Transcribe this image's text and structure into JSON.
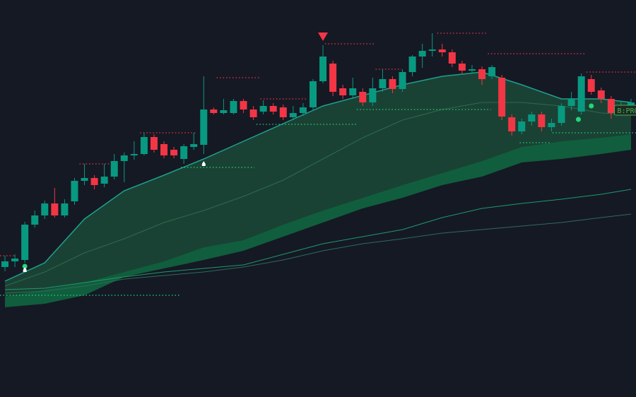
{
  "chart_data": {
    "type": "candlestick",
    "background": "#151924",
    "xlim": [
      -0.5,
      63.5
    ],
    "ylim": [
      0,
      562
    ],
    "up_color": "#089981",
    "down_color": "#f23645",
    "open": [
      184,
      192,
      194,
      244,
      257,
      274,
      257,
      277,
      306,
      310,
      302,
      312,
      334,
      342,
      344,
      368,
      358,
      350,
      337,
      354,
      357,
      407,
      402,
      402,
      419,
      407,
      404,
      412,
      410,
      396,
      402,
      410,
      447,
      472,
      437,
      427,
      432,
      417,
      437,
      450,
      436,
      460,
      482,
      490,
      492,
      488,
      472,
      462,
      464,
      454,
      452,
      396,
      376,
      390,
      400,
      382,
      388,
      412,
      404,
      450,
      434,
      422,
      404,
      412
    ],
    "close": [
      192,
      196,
      244,
      257,
      274,
      257,
      274,
      306,
      310,
      300,
      312,
      334,
      342,
      344,
      368,
      350,
      342,
      342,
      355,
      358,
      407,
      402,
      406,
      419,
      407,
      396,
      412,
      404,
      396,
      402,
      410,
      447,
      482,
      432,
      427,
      437,
      417,
      437,
      450,
      436,
      460,
      482,
      490,
      492,
      488,
      472,
      462,
      464,
      450,
      467,
      397,
      376,
      390,
      400,
      382,
      388,
      412,
      422,
      454,
      432,
      422,
      402,
      412,
      417
    ],
    "high": [
      200,
      202,
      248,
      264,
      278,
      296,
      280,
      310,
      330,
      314,
      330,
      344,
      346,
      362,
      374,
      372,
      362,
      354,
      358,
      374,
      454,
      410,
      422,
      422,
      422,
      412,
      420,
      416,
      414,
      412,
      416,
      450,
      498,
      476,
      442,
      452,
      437,
      452,
      464,
      454,
      464,
      484,
      500,
      515,
      500,
      492,
      476,
      470,
      468,
      470,
      456,
      400,
      394,
      404,
      404,
      394,
      416,
      432,
      458,
      456,
      438,
      426,
      418,
      422
    ],
    "low": [
      178,
      184,
      190,
      240,
      252,
      254,
      254,
      272,
      300,
      294,
      297,
      308,
      304,
      336,
      342,
      346,
      338,
      338,
      330,
      350,
      344,
      400,
      400,
      400,
      402,
      392,
      400,
      400,
      392,
      392,
      398,
      406,
      444,
      426,
      422,
      422,
      412,
      412,
      432,
      430,
      432,
      454,
      466,
      482,
      482,
      467,
      458,
      458,
      442,
      450,
      392,
      370,
      372,
      384,
      376,
      376,
      384,
      406,
      400,
      428,
      416,
      394,
      400,
      406
    ],
    "indicator_x": [
      0,
      4,
      8,
      12,
      16,
      20,
      24,
      28,
      32,
      36,
      40,
      44,
      48,
      52,
      56,
      60,
      63
    ],
    "bands": [
      {
        "upper": [
          164,
          190,
          252,
          292,
          314,
          337,
          362,
          387,
          412,
          427,
          442,
          454,
          460,
          442,
          422,
          422,
          417
        ],
        "lower": [
          142,
          152,
          162,
          177,
          192,
          212,
          222,
          244,
          264,
          282,
          300,
          317,
          334,
          354,
          362,
          367,
          372
        ],
        "color": "#1b4a37",
        "edge_color": "#1fa08c"
      },
      {
        "upper": [
          142,
          152,
          162,
          177,
          192,
          212,
          222,
          244,
          264,
          282,
          300,
          317,
          334,
          354,
          362,
          367,
          372
        ],
        "lower": [
          127,
          132,
          144,
          170,
          182,
          194,
          207,
          227,
          247,
          267,
          282,
          300,
          312,
          332,
          337,
          344,
          350
        ],
        "color": "#0f6b42"
      }
    ],
    "series": [
      {
        "color": "#2c6b4d",
        "values": [
          157,
          177,
          204,
          224,
          247,
          264,
          284,
          307,
          337,
          367,
          392,
          407,
          417,
          417,
          412,
          402,
          400
        ]
      },
      {
        "color": "#1e9a6c",
        "values": [
          152,
          154,
          162,
          170,
          177,
          182,
          187,
          202,
          217,
          227,
          237,
          254,
          267,
          274,
          280,
          287,
          294
        ]
      },
      {
        "color": "#2e6b5a",
        "values": [
          147,
          150,
          157,
          167,
          172,
          177,
          184,
          194,
          207,
          217,
          224,
          232,
          237,
          242,
          247,
          254,
          259
        ]
      }
    ],
    "levels": [
      {
        "color": "#f23645",
        "from": [
          -0.5,
          7.5,
          13.6,
          21.3,
          25.7,
          32.2,
          37.3,
          43.5,
          48.6,
          58.5
        ],
        "to": [
          1.1,
          10.5,
          19.3,
          25.7,
          30.4,
          37.2,
          39.9,
          48.4,
          58.4,
          63.5
        ],
        "values": [
          200,
          330,
          374,
          452,
          422,
          500,
          464,
          515,
          486,
          460
        ]
      },
      {
        "color": "#22d67a",
        "from": [
          -0.5,
          17.7,
          25.3,
          35.4,
          51.8,
          55.1
        ],
        "to": [
          17.7,
          25.1,
          35.4,
          48.9,
          55,
          63.5
        ],
        "values": [
          144,
          325,
          386,
          407,
          360,
          374
        ]
      }
    ],
    "markers": {
      "sell": {
        "color": "#f23645",
        "x": [
          32
        ],
        "values": [
          510
        ]
      },
      "buy": {
        "color": "#22d67a",
        "x": [
          2,
          57.7,
          59
        ],
        "values": [
          185,
          393,
          412
        ]
      },
      "exit": {
        "color": "#ffffff",
        "x": [
          2,
          20
        ],
        "values": [
          180,
          330
        ]
      }
    },
    "annotations": [
      {
        "text": "B:PRO",
        "x": 61.4,
        "value": 406
      }
    ]
  }
}
